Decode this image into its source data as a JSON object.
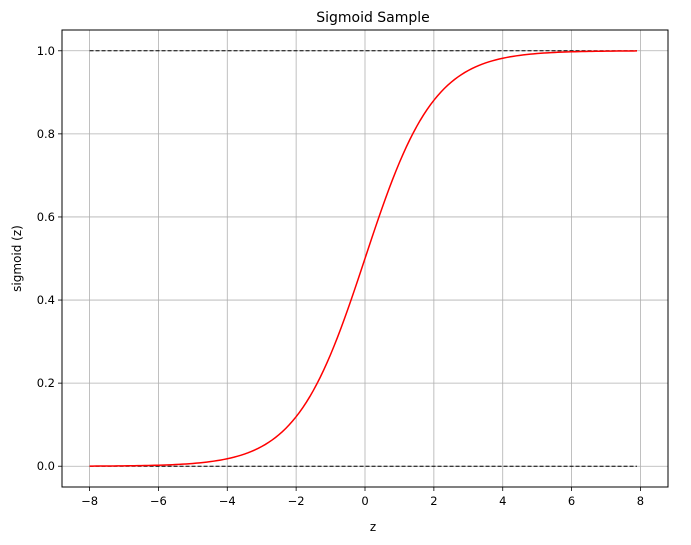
{
  "chart_data": {
    "type": "line",
    "title": "Sigmoid Sample",
    "xlabel": "z",
    "ylabel": "sigmoid (z)",
    "xlim": [
      -8.8,
      8.8
    ],
    "ylim": [
      -0.05,
      1.05
    ],
    "grid": true,
    "xticks": [
      -8,
      -6,
      -4,
      -2,
      0,
      2,
      4,
      6,
      8
    ],
    "yticks": [
      0.0,
      0.2,
      0.4,
      0.6,
      0.8,
      1.0
    ],
    "xtick_labels": [
      "−8",
      "−6",
      "−4",
      "−2",
      "0",
      "2",
      "4",
      "6",
      "8"
    ],
    "ytick_labels": [
      "0.0",
      "0.2",
      "0.4",
      "0.6",
      "0.8",
      "1.0"
    ],
    "series": [
      {
        "function": "sigmoid",
        "x_range": [
          -8.0,
          7.9
        ],
        "step": 0.1,
        "color": "#ff0000",
        "style": "solid"
      }
    ],
    "reference_lines": [
      {
        "y": 1.0,
        "x_range": [
          -8.0,
          7.9
        ],
        "color": "#000000",
        "style": "dashed"
      },
      {
        "y": 0.0,
        "x_range": [
          -8.0,
          7.9
        ],
        "color": "#000000",
        "style": "dashed"
      }
    ],
    "colors": {
      "grid": "#b0b0b0",
      "axes": "#000000"
    }
  }
}
